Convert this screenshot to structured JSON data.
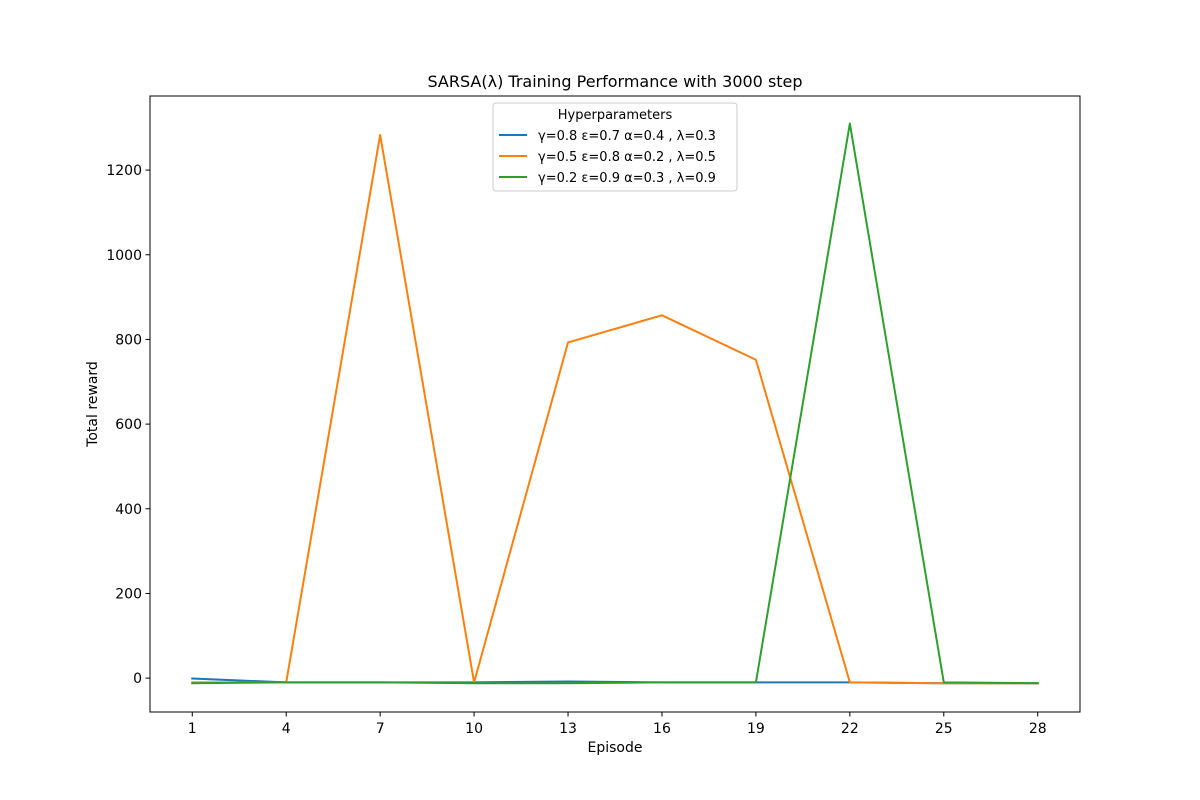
{
  "chart_data": {
    "type": "line",
    "title": "SARSA(λ) Training Performance with 3000 step",
    "xlabel": "Episode",
    "ylabel": "Total reward",
    "x": [
      1,
      4,
      7,
      10,
      13,
      16,
      19,
      22,
      25,
      28
    ],
    "x_ticks": [
      "1",
      "4",
      "7",
      "10",
      "13",
      "16",
      "19",
      "22",
      "25",
      "28"
    ],
    "y_ticks": [
      0,
      200,
      400,
      600,
      800,
      1000,
      1200
    ],
    "xlim": [
      -0.35,
      29.35
    ],
    "ylim": [
      -80,
      1375
    ],
    "grid": false,
    "legend": {
      "title": "Hyperparameters",
      "placement": "upper center"
    },
    "series": [
      {
        "name": "γ=0.8 ε=0.7 α=0.4 , λ=0.3",
        "color": "#1f77b4",
        "values": [
          -1,
          -10,
          -10,
          -10,
          -8,
          -10,
          -10,
          -10,
          -12,
          -12
        ]
      },
      {
        "name": "γ=0.5 ε=0.8 α=0.2 , λ=0.5",
        "color": "#ff7f0e",
        "values": [
          -10,
          -10,
          1283,
          -10,
          793,
          857,
          752,
          -10,
          -12,
          -12
        ]
      },
      {
        "name": "γ=0.2 ε=0.9 α=0.3 , λ=0.9",
        "color": "#2ca02c",
        "values": [
          -12,
          -10,
          -10,
          -12,
          -12,
          -10,
          -10,
          1310,
          -10,
          -12
        ]
      }
    ]
  }
}
